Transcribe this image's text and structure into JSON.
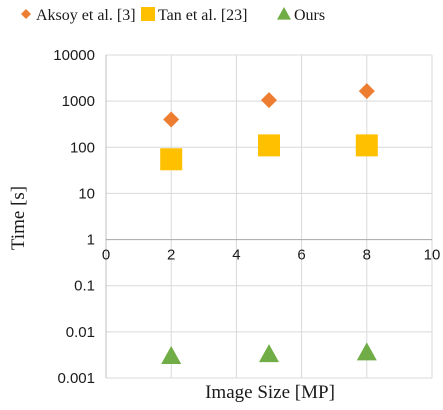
{
  "chart_data": {
    "type": "scatter",
    "xlabel": "Image Size [MP]",
    "ylabel": "Time [s]",
    "xlim": [
      0,
      10
    ],
    "ylim": [
      0.001,
      10000
    ],
    "yscale": "log",
    "grid": true,
    "legend_position": "top",
    "x_ticks": [
      "0",
      "2",
      "4",
      "6",
      "8",
      "10"
    ],
    "y_ticks": [
      "0.001",
      "0.01",
      "0.1",
      "1",
      "10",
      "100",
      "1000",
      "10000"
    ],
    "series": [
      {
        "name": "Aksoy et al. [3]",
        "marker": "diamond",
        "color": "#ED7D31",
        "points": [
          {
            "x": 2,
            "y": 400
          },
          {
            "x": 5,
            "y": 1050
          },
          {
            "x": 8,
            "y": 1650
          }
        ]
      },
      {
        "name": "Tan et al. [23]",
        "marker": "square",
        "color": "#FFC000",
        "points": [
          {
            "x": 2,
            "y": 55
          },
          {
            "x": 5,
            "y": 110
          },
          {
            "x": 8,
            "y": 110
          }
        ]
      },
      {
        "name": "Ours",
        "marker": "triangle",
        "color": "#70AD47",
        "points": [
          {
            "x": 2,
            "y": 0.003
          },
          {
            "x": 5,
            "y": 0.0033
          },
          {
            "x": 8,
            "y": 0.0036
          }
        ]
      }
    ]
  }
}
